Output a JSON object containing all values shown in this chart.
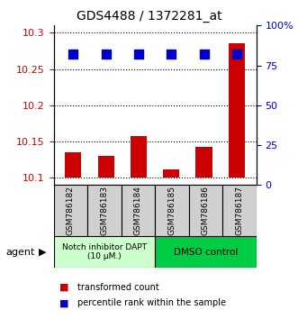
{
  "title": "GDS4488 / 1372281_at",
  "categories": [
    "GSM786182",
    "GSM786183",
    "GSM786184",
    "GSM786185",
    "GSM786186",
    "GSM786187"
  ],
  "bar_values": [
    10.135,
    10.13,
    10.158,
    10.111,
    10.143,
    10.286
  ],
  "bar_bottom": 10.1,
  "bar_color": "#cc0000",
  "dot_values": [
    82,
    82,
    82,
    82,
    82,
    82
  ],
  "dot_color": "#0000cc",
  "ylim_left": [
    10.09,
    10.31
  ],
  "ylim_right": [
    0,
    100
  ],
  "yticks_left": [
    10.1,
    10.15,
    10.2,
    10.25,
    10.3
  ],
  "ytick_labels_left": [
    "10.1",
    "10.15",
    "10.2",
    "10.25",
    "10.3"
  ],
  "yticks_right": [
    0,
    25,
    50,
    75,
    100
  ],
  "ytick_labels_right": [
    "0",
    "25",
    "50",
    "75",
    "100%"
  ],
  "group1_label": "Notch inhibitor DAPT\n(10 μM.)",
  "group2_label": "DMSO control",
  "group1_indices": [
    0,
    1,
    2
  ],
  "group2_indices": [
    3,
    4,
    5
  ],
  "group1_color": "#ccffcc",
  "group2_color": "#00cc44",
  "agent_label": "agent",
  "legend_bar_label": "transformed count",
  "legend_dot_label": "percentile rank within the sample",
  "grid_color": "#000000",
  "tick_label_color_left": "#cc0000",
  "tick_label_color_right": "#0000cc",
  "bar_width": 0.5,
  "dot_size": 60
}
